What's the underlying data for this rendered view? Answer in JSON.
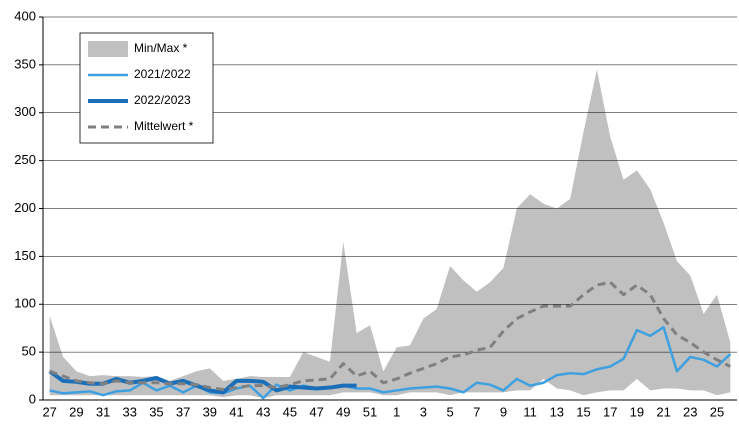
{
  "chart_data": {
    "type": "line",
    "categories": [
      27,
      null,
      29,
      null,
      31,
      null,
      33,
      null,
      35,
      null,
      37,
      null,
      39,
      null,
      41,
      null,
      43,
      null,
      45,
      null,
      47,
      null,
      49,
      null,
      51,
      null,
      1,
      null,
      3,
      null,
      5,
      null,
      7,
      null,
      9,
      null,
      11,
      null,
      13,
      null,
      15,
      null,
      17,
      null,
      19,
      null,
      21,
      null,
      23,
      null,
      25,
      null
    ],
    "ylim": [
      0,
      400
    ],
    "yticks": [
      0,
      50,
      100,
      150,
      200,
      250,
      300,
      350,
      400
    ],
    "grid": true,
    "legend": "upper left",
    "series": [
      {
        "name": "Min/Max *",
        "color": "#c0c0c0",
        "kind": "band",
        "values": [
          88,
          45,
          30,
          25,
          26,
          25,
          25,
          24,
          25,
          20,
          25,
          30,
          33,
          20,
          22,
          25,
          24,
          24,
          24,
          50,
          45,
          40,
          165,
          70,
          78,
          30,
          55,
          57,
          85,
          95,
          140,
          125,
          113,
          123,
          138,
          200,
          215,
          205,
          200,
          210,
          280,
          345,
          275,
          230,
          240,
          220,
          185,
          145,
          130,
          90,
          110,
          60
        ],
        "min": [
          5,
          5,
          5,
          5,
          5,
          5,
          5,
          5,
          5,
          5,
          5,
          5,
          5,
          3,
          5,
          5,
          2,
          5,
          5,
          5,
          5,
          5,
          8,
          8,
          8,
          5,
          5,
          8,
          8,
          8,
          5,
          8,
          8,
          8,
          8,
          10,
          10,
          22,
          12,
          10,
          5,
          8,
          10,
          10,
          22,
          10,
          12,
          12,
          10,
          10,
          5,
          8
        ]
      },
      {
        "name": "2021/2022",
        "color": "#3fa0e0",
        "width": 2.5,
        "values": [
          10,
          7,
          8,
          9,
          5,
          9,
          10,
          18,
          10,
          15,
          8,
          15,
          8,
          7,
          12,
          15,
          2,
          16,
          10,
          15,
          12,
          13,
          15,
          12,
          12,
          8,
          10,
          12,
          13,
          14,
          12,
          8,
          18,
          16,
          10,
          22,
          15,
          18,
          26,
          28,
          27,
          32,
          35,
          43,
          73,
          67,
          76,
          30,
          45,
          42,
          35,
          48
        ]
      },
      {
        "name": "2022/2023",
        "color": "#1a6fb8",
        "width": 4,
        "values": [
          30,
          20,
          19,
          17,
          17,
          22,
          18,
          20,
          23,
          17,
          20,
          15,
          10,
          8,
          20,
          20,
          19,
          10,
          14,
          13,
          12,
          13,
          15,
          15,
          null,
          null,
          null,
          null,
          null,
          null,
          null,
          null,
          null,
          null,
          null,
          null,
          null,
          null,
          null,
          null,
          null,
          null,
          null,
          null,
          null,
          null,
          null,
          null,
          null,
          null,
          null,
          null
        ]
      },
      {
        "name": "Mittelwert *",
        "color": "#808080",
        "width": 3,
        "dash": true,
        "values": [
          30,
          25,
          20,
          18,
          17,
          20,
          18,
          18,
          18,
          17,
          17,
          16,
          13,
          11,
          13,
          15,
          15,
          13,
          16,
          20,
          21,
          22,
          38,
          25,
          30,
          18,
          22,
          28,
          33,
          38,
          45,
          47,
          52,
          55,
          72,
          85,
          92,
          98,
          98,
          98,
          110,
          120,
          123,
          110,
          120,
          110,
          85,
          68,
          60,
          50,
          42,
          35
        ]
      }
    ]
  }
}
